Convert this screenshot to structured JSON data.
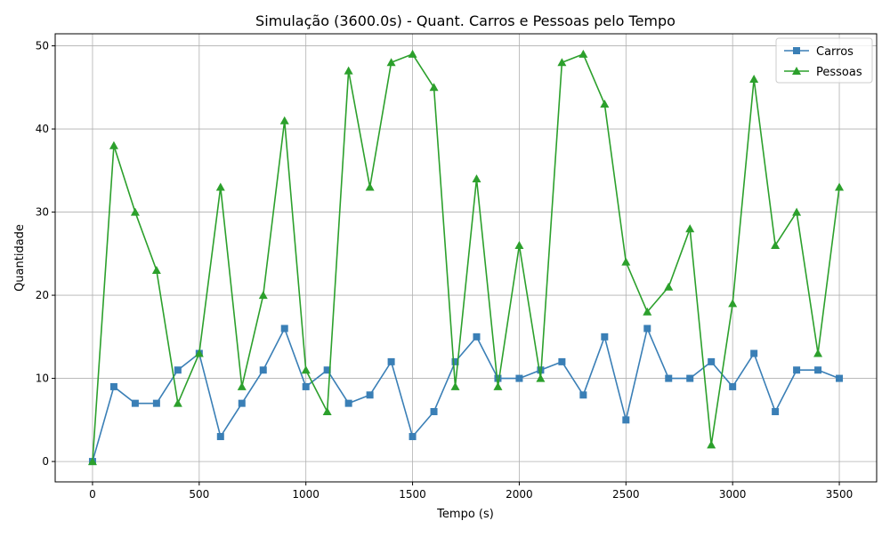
{
  "chart_data": {
    "type": "line",
    "title": "Simulação (3600.0s) - Quant. Carros e Pessoas pelo Tempo",
    "xlabel": "Tempo (s)",
    "ylabel": "Quantidade",
    "xlim": [
      -175,
      3675
    ],
    "ylim": [
      -2.45,
      51.45
    ],
    "grid": true,
    "legend_position": "top-right",
    "x_ticks": [
      0,
      500,
      1000,
      1500,
      2000,
      2500,
      3000,
      3500
    ],
    "y_ticks": [
      0,
      10,
      20,
      30,
      40,
      50
    ],
    "x_tick_labels": [
      "0",
      "500",
      "1000",
      "1500",
      "2000",
      "2500",
      "3000",
      "3500"
    ],
    "y_tick_labels": [
      "0",
      "10",
      "20",
      "30",
      "40",
      "50"
    ],
    "x": [
      0,
      100,
      200,
      300,
      400,
      500,
      600,
      700,
      800,
      900,
      1000,
      1100,
      1200,
      1300,
      1400,
      1500,
      1600,
      1700,
      1800,
      1900,
      2000,
      2100,
      2200,
      2300,
      2400,
      2500,
      2600,
      2700,
      2800,
      2900,
      3000,
      3100,
      3200,
      3300,
      3400,
      3500
    ],
    "series": [
      {
        "name": "Carros",
        "color": "#3a7fb6",
        "marker": "square",
        "values": [
          0,
          9,
          7,
          7,
          11,
          13,
          3,
          7,
          11,
          16,
          9,
          11,
          7,
          8,
          12,
          3,
          6,
          12,
          15,
          10,
          10,
          11,
          12,
          8,
          15,
          5,
          16,
          10,
          10,
          12,
          9,
          13,
          6,
          11,
          11,
          10
        ]
      },
      {
        "name": "Pessoas",
        "color": "#2ca02c",
        "marker": "triangle",
        "values": [
          0,
          38,
          30,
          23,
          7,
          13,
          33,
          9,
          20,
          41,
          11,
          6,
          47,
          33,
          48,
          49,
          45,
          9,
          34,
          9,
          26,
          10,
          48,
          49,
          43,
          24,
          18,
          21,
          28,
          2,
          19,
          46,
          26,
          30,
          13,
          33
        ]
      }
    ]
  }
}
